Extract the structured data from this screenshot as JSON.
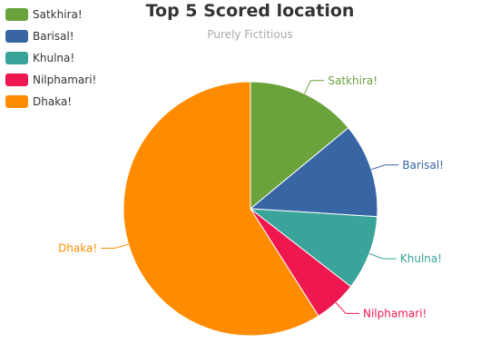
{
  "chart_data": {
    "type": "pie",
    "title": "Top 5 Scored location",
    "subtitle": "Purely Fictitious",
    "legend_position": "top-left",
    "slices": [
      {
        "name": "Satkhira!",
        "value": 14,
        "color": "#6aa23c"
      },
      {
        "name": "Barisal!",
        "value": 12,
        "color": "#3866a4"
      },
      {
        "name": "Khulna!",
        "value": 9.5,
        "color": "#3aa39a"
      },
      {
        "name": "Nilphamari!",
        "value": 5.5,
        "color": "#ee174f"
      },
      {
        "name": "Dhaka!",
        "value": 59,
        "color": "#ff8c00"
      }
    ]
  }
}
